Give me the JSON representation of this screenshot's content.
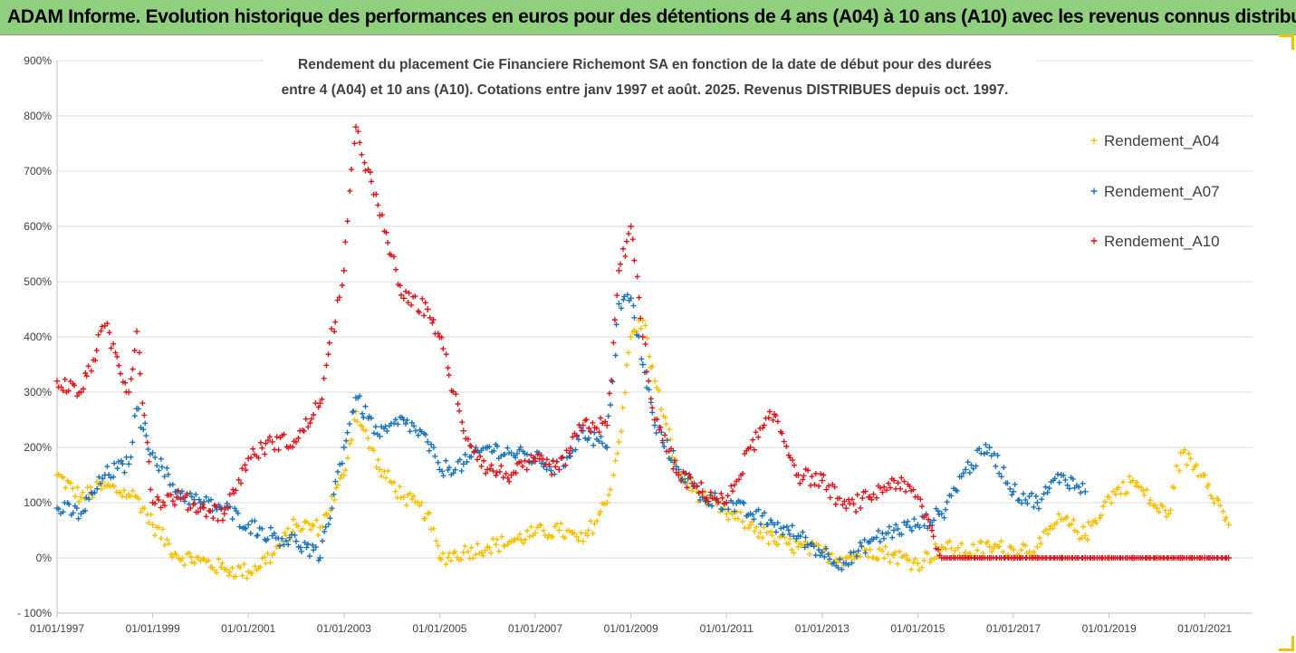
{
  "banner": {
    "text": "ADAM Informe. Evolution historique des performances en euros pour des détentions de 4 ans (A04) à 10 ans (A10) avec les revenus connus distribués"
  },
  "chart_data": {
    "type": "scatter",
    "title": [
      "Rendement du placement Cie Financiere Richemont SA en fonction de la date de début pour des durées",
      "entre 4 (A04) et 10 ans (A10). Cotations entre janv 1997 et août. 2025. Revenus DISTRIBUES depuis oct. 1997."
    ],
    "xlabel": "",
    "ylabel": "",
    "x_range": [
      "1997-01-01",
      "2022-01-01"
    ],
    "ylim": [
      -100,
      900
    ],
    "y_ticks": [
      "- 100%",
      "0%",
      "100%",
      "200%",
      "300%",
      "400%",
      "500%",
      "600%",
      "700%",
      "800%",
      "900%"
    ],
    "x_ticks": [
      "01/01/1997",
      "01/01/1999",
      "01/01/2001",
      "01/01/2003",
      "01/01/2005",
      "01/01/2007",
      "01/01/2009",
      "01/01/2011",
      "01/01/2013",
      "01/01/2015",
      "01/01/2017",
      "01/01/2019",
      "01/01/2021"
    ],
    "grid": "horizontal",
    "legend": "top-right",
    "marker": "+",
    "series": [
      {
        "name": "Rendement_A04",
        "color": "#f5c000",
        "x": [
          "1997-01",
          "1997-07",
          "1998-01",
          "1998-07",
          "1998-09",
          "1999-01",
          "1999-07",
          "2000-01",
          "2000-07",
          "2001-01",
          "2001-07",
          "2002-01",
          "2002-07",
          "2003-01",
          "2003-04",
          "2003-10",
          "2004-04",
          "2004-10",
          "2005-01",
          "2005-07",
          "2006-01",
          "2006-07",
          "2007-01",
          "2007-07",
          "2008-01",
          "2008-07",
          "2008-10",
          "2009-01",
          "2009-04",
          "2009-07",
          "2010-01",
          "2010-07",
          "2011-01",
          "2011-07",
          "2012-01",
          "2012-07",
          "2013-01",
          "2013-07",
          "2014-01",
          "2014-07",
          "2015-01",
          "2015-07",
          "2016-01",
          "2016-07",
          "2017-01",
          "2017-07",
          "2018-01",
          "2018-07",
          "2019-01",
          "2019-07",
          "2020-01",
          "2020-04",
          "2020-07",
          "2021-01",
          "2021-07"
        ],
        "y": [
          150,
          110,
          130,
          115,
          110,
          60,
          5,
          -5,
          -20,
          -25,
          5,
          60,
          55,
          150,
          265,
          160,
          110,
          80,
          0,
          10,
          20,
          30,
          45,
          50,
          30,
          100,
          210,
          400,
          430,
          320,
          150,
          110,
          80,
          60,
          30,
          20,
          10,
          0,
          15,
          5,
          -10,
          20,
          10,
          20,
          15,
          20,
          70,
          40,
          110,
          140,
          90,
          80,
          190,
          150,
          60
        ]
      },
      {
        "name": "Rendement_A07",
        "color": "#1b73b8",
        "x": [
          "1997-01",
          "1997-07",
          "1998-01",
          "1998-07",
          "1998-09",
          "1999-01",
          "1999-07",
          "2000-01",
          "2000-07",
          "2001-01",
          "2001-07",
          "2002-01",
          "2002-07",
          "2003-01",
          "2003-04",
          "2003-10",
          "2004-04",
          "2004-10",
          "2005-01",
          "2005-07",
          "2006-01",
          "2006-07",
          "2007-01",
          "2007-07",
          "2008-01",
          "2008-07",
          "2008-10",
          "2009-01",
          "2009-04",
          "2009-07",
          "2010-01",
          "2010-07",
          "2011-01",
          "2011-07",
          "2012-01",
          "2012-07",
          "2013-01",
          "2013-07",
          "2014-01",
          "2014-07",
          "2015-01",
          "2015-07",
          "2016-01",
          "2016-07",
          "2017-01",
          "2017-07",
          "2018-01",
          "2018-07"
        ],
        "y": [
          90,
          80,
          150,
          170,
          270,
          190,
          120,
          100,
          90,
          60,
          40,
          30,
          0,
          200,
          290,
          220,
          250,
          210,
          160,
          170,
          200,
          190,
          180,
          160,
          230,
          200,
          460,
          470,
          350,
          240,
          160,
          110,
          100,
          80,
          60,
          40,
          10,
          -10,
          30,
          50,
          60,
          80,
          160,
          200,
          120,
          100,
          150,
          120
        ]
      },
      {
        "name": "Rendement_A10",
        "color": "#e0141c",
        "x": [
          "1997-01",
          "1997-07",
          "1998-01",
          "1998-07",
          "1998-09",
          "1999-01",
          "1999-07",
          "2000-01",
          "2000-07",
          "2001-01",
          "2001-07",
          "2002-01",
          "2002-07",
          "2003-01",
          "2003-04",
          "2003-10",
          "2004-04",
          "2004-10",
          "2005-01",
          "2005-07",
          "2006-01",
          "2006-07",
          "2007-01",
          "2007-07",
          "2008-01",
          "2008-07",
          "2008-10",
          "2009-01",
          "2009-04",
          "2009-07",
          "2010-01",
          "2010-07",
          "2011-01",
          "2011-07",
          "2012-01",
          "2012-07",
          "2013-01",
          "2013-07",
          "2014-01",
          "2014-07",
          "2015-01",
          "2015-07",
          "2016-01",
          "2016-07",
          "2017-01",
          "2017-07",
          "2018-01",
          "2018-07",
          "2019-01",
          "2019-07",
          "2020-01",
          "2020-07",
          "2021-01",
          "2021-07"
        ],
        "y": [
          320,
          300,
          420,
          300,
          410,
          100,
          110,
          90,
          80,
          180,
          210,
          210,
          280,
          520,
          780,
          620,
          470,
          450,
          400,
          230,
          160,
          150,
          175,
          160,
          240,
          240,
          520,
          600,
          400,
          250,
          150,
          120,
          100,
          200,
          260,
          150,
          140,
          90,
          110,
          140,
          110,
          0,
          0,
          0,
          0,
          0,
          0,
          0,
          0,
          0,
          0,
          0,
          0,
          0
        ]
      }
    ]
  }
}
